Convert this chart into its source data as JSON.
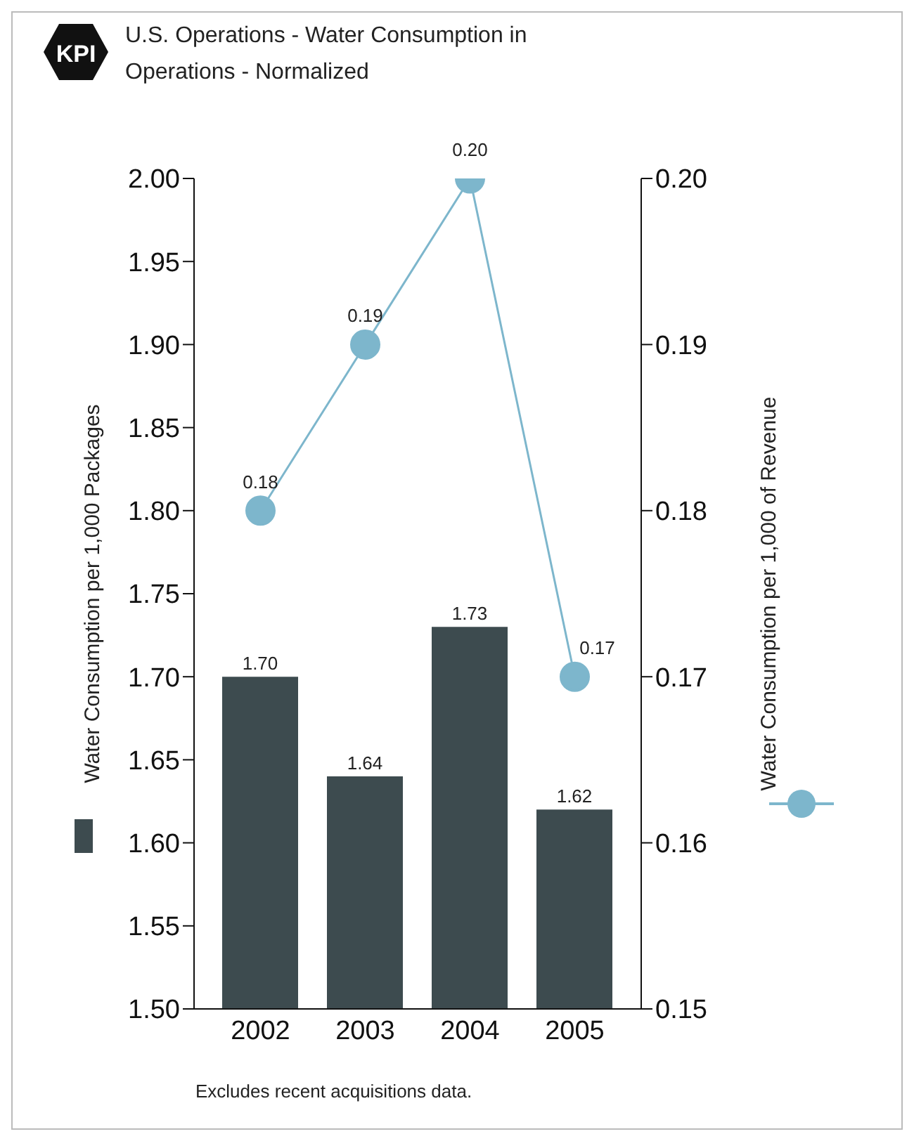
{
  "chart_data": {
    "type": "bar",
    "title": "U.S. Operations - Water Consumption in Operations - Normalized",
    "categories": [
      "2002",
      "2003",
      "2004",
      "2005"
    ],
    "series": [
      {
        "color": "#3d4b4f",
        "values": [
          1.7,
          1.64,
          1.73,
          1.62
        ],
        "value_labels": [
          "1.70",
          "1.64",
          "1.73",
          "1.62"
        ]
      },
      {
        "type": "line",
        "axis": "y2",
        "color": "#7db6cc",
        "values": [
          0.18,
          0.19,
          0.2,
          0.17
        ],
        "value_labels": [
          "0.18",
          "0.19",
          "0.20",
          "0.17"
        ]
      }
    ],
    "ylabel": "Water Consumption per 1,000 Packages",
    "y2label": "Water Consumption per 1,000 of Revenue",
    "ylim": [
      1.5,
      2.0
    ],
    "yticks": [
      {
        "value": 1.5,
        "label": "1.50"
      },
      {
        "value": 1.55,
        "label": "1.55"
      },
      {
        "value": 1.6,
        "label": "1.60"
      },
      {
        "value": 1.65,
        "label": "1.65"
      },
      {
        "value": 1.7,
        "label": "1.70"
      },
      {
        "value": 1.75,
        "label": "1.75"
      },
      {
        "value": 1.8,
        "label": "1.80"
      },
      {
        "value": 1.85,
        "label": "1.85"
      },
      {
        "value": 1.9,
        "label": "1.90"
      },
      {
        "value": 1.95,
        "label": "1.95"
      },
      {
        "value": 2.0,
        "label": "2.00"
      }
    ],
    "y2lim": [
      0.15,
      0.2
    ],
    "y2ticks": [
      {
        "value": 0.15,
        "label": "0.15"
      },
      {
        "value": 0.16,
        "label": "0.16"
      },
      {
        "value": 0.17,
        "label": "0.17"
      },
      {
        "value": 0.18,
        "label": "0.18"
      },
      {
        "value": 0.19,
        "label": "0.19"
      },
      {
        "value": 0.2,
        "label": "0.20"
      }
    ],
    "marker": "circle",
    "grid": false,
    "legend": false,
    "annotations": [
      "KPI",
      "Excludes recent acquisitions data."
    ]
  }
}
